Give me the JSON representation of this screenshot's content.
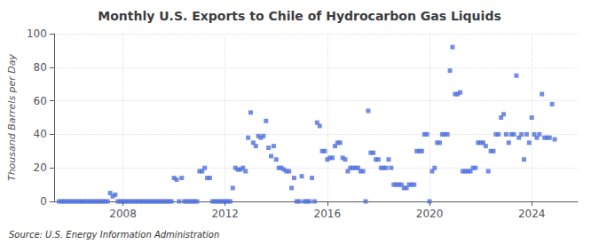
{
  "chart_data": {
    "type": "scatter",
    "title": "Monthly U.S. Exports to Chile of Hydrocarbon Gas Liquids",
    "ylabel": "Thousand Barrels per Day",
    "annotation": "Source: U.S. Energy Information Administration",
    "marker": "square",
    "grid": true,
    "xlim": [
      2005.3,
      2025.8
    ],
    "xticks": [
      2008,
      2012,
      2016,
      2020,
      2024
    ],
    "ylim": [
      0,
      100
    ],
    "yticks": [
      0,
      20,
      40,
      60,
      80,
      100
    ],
    "x": [
      2005.5,
      2005.6,
      2005.7,
      2005.8,
      2005.9,
      2006.0,
      2006.1,
      2006.2,
      2006.3,
      2006.4,
      2006.5,
      2006.6,
      2006.7,
      2006.8,
      2006.9,
      2007.0,
      2007.1,
      2007.2,
      2007.3,
      2007.4,
      2007.5,
      2007.6,
      2007.7,
      2007.8,
      2007.9,
      2008.0,
      2008.1,
      2008.2,
      2008.3,
      2008.4,
      2008.5,
      2008.6,
      2008.7,
      2008.8,
      2008.9,
      2009.0,
      2009.1,
      2009.2,
      2009.3,
      2009.4,
      2009.5,
      2009.6,
      2009.7,
      2009.8,
      2009.9,
      2010.0,
      2010.1,
      2010.2,
      2010.3,
      2010.4,
      2010.5,
      2010.6,
      2010.7,
      2010.8,
      2010.9,
      2011.0,
      2011.1,
      2011.2,
      2011.3,
      2011.4,
      2011.5,
      2011.6,
      2011.7,
      2011.8,
      2011.9,
      2012.0,
      2012.1,
      2012.2,
      2012.3,
      2012.4,
      2012.5,
      2012.6,
      2012.7,
      2012.8,
      2012.9,
      2013.0,
      2013.1,
      2013.2,
      2013.3,
      2013.4,
      2013.5,
      2013.6,
      2013.7,
      2013.8,
      2013.9,
      2014.0,
      2014.1,
      2014.2,
      2014.3,
      2014.4,
      2014.5,
      2014.6,
      2014.7,
      2014.8,
      2014.9,
      2015.0,
      2015.1,
      2015.2,
      2015.3,
      2015.4,
      2015.5,
      2015.6,
      2015.7,
      2015.8,
      2015.9,
      2016.0,
      2016.1,
      2016.2,
      2016.3,
      2016.4,
      2016.5,
      2016.6,
      2016.7,
      2016.8,
      2016.9,
      2017.0,
      2017.1,
      2017.2,
      2017.3,
      2017.4,
      2017.5,
      2017.6,
      2017.7,
      2017.8,
      2017.9,
      2018.0,
      2018.1,
      2018.2,
      2018.3,
      2018.4,
      2018.5,
      2018.6,
      2018.7,
      2018.8,
      2018.9,
      2019.0,
      2019.1,
      2019.2,
      2019.3,
      2019.4,
      2019.5,
      2019.6,
      2019.7,
      2019.8,
      2019.9,
      2020.0,
      2020.1,
      2020.2,
      2020.3,
      2020.4,
      2020.5,
      2020.6,
      2020.7,
      2020.8,
      2020.9,
      2021.0,
      2021.1,
      2021.2,
      2021.3,
      2021.4,
      2021.5,
      2021.6,
      2021.7,
      2021.8,
      2021.9,
      2022.0,
      2022.1,
      2022.2,
      2022.3,
      2022.4,
      2022.5,
      2022.6,
      2022.7,
      2022.8,
      2022.9,
      2023.0,
      2023.1,
      2023.2,
      2023.3,
      2023.4,
      2023.5,
      2023.6,
      2023.7,
      2023.8,
      2023.9,
      2024.0,
      2024.1,
      2024.2,
      2024.3,
      2024.4,
      2024.5,
      2024.6,
      2024.7,
      2024.8,
      2024.9
    ],
    "values": [
      0,
      0,
      0,
      0,
      0,
      0,
      0,
      0,
      0,
      0,
      0,
      0,
      0,
      0,
      0,
      0,
      0,
      0,
      0,
      0,
      5,
      3,
      4,
      0,
      0,
      0,
      0,
      0,
      0,
      0,
      0,
      0,
      0,
      0,
      0,
      0,
      0,
      0,
      0,
      0,
      0,
      0,
      0,
      0,
      0,
      14,
      13,
      0,
      14,
      0,
      0,
      0,
      0,
      0,
      0,
      18,
      18,
      20,
      14,
      14,
      0,
      0,
      0,
      0,
      0,
      0,
      0,
      0,
      8,
      20,
      19,
      19,
      20,
      18,
      38,
      53,
      35,
      33,
      39,
      38,
      39,
      48,
      32,
      27,
      33,
      25,
      20,
      20,
      19,
      18,
      18,
      8,
      14,
      0,
      0,
      15,
      0,
      0,
      0,
      14,
      0,
      47,
      45,
      30,
      30,
      25,
      26,
      26,
      33,
      35,
      35,
      26,
      25,
      18,
      20,
      20,
      20,
      20,
      18,
      18,
      0,
      54,
      29,
      29,
      25,
      25,
      20,
      20,
      20,
      25,
      20,
      10,
      10,
      10,
      10,
      8,
      8,
      10,
      10,
      10,
      30,
      30,
      30,
      40,
      40,
      0,
      18,
      20,
      35,
      35,
      40,
      40,
      40,
      78,
      92,
      64,
      64,
      65,
      18,
      18,
      18,
      18,
      20,
      20,
      35,
      35,
      35,
      33,
      18,
      30,
      30,
      40,
      40,
      50,
      52,
      40,
      35,
      40,
      40,
      75,
      38,
      40,
      25,
      40,
      35,
      50,
      40,
      38,
      40,
      64,
      38,
      38,
      38,
      58,
      37
    ]
  }
}
